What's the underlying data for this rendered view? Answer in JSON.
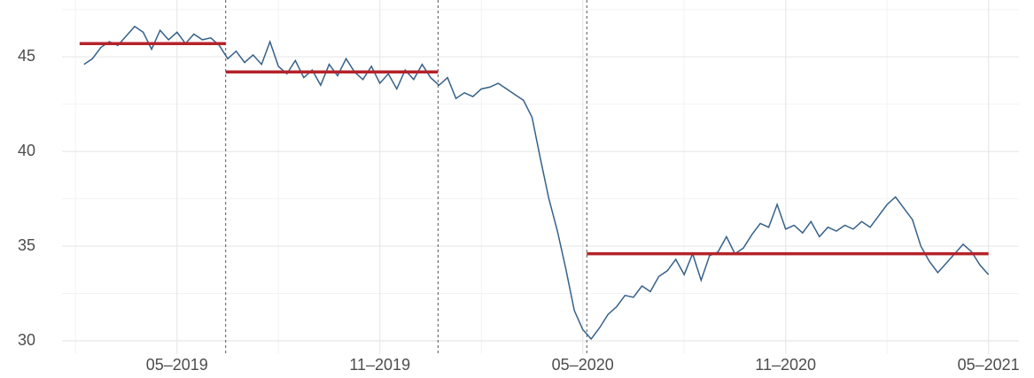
{
  "chart_data": {
    "type": "line",
    "line_color": "#36618a",
    "segment_color": "#b5232a",
    "xlim": [
      0.6,
      28.9
    ],
    "ylim": [
      29.3,
      48
    ],
    "xticks": [
      {
        "value": 4,
        "label": "05–2019"
      },
      {
        "value": 10,
        "label": "11–2019"
      },
      {
        "value": 16,
        "label": "05–2020"
      },
      {
        "value": 22,
        "label": "11–2020"
      },
      {
        "value": 28,
        "label": "05–2021"
      }
    ],
    "minor_xticks": [
      1,
      7,
      13,
      19,
      25
    ],
    "yticks": [
      30,
      35,
      40,
      45
    ],
    "minor_yticks": [
      32.5,
      37.5,
      42.5,
      47.5
    ],
    "grid": true,
    "changepoints": [
      5.44,
      11.72,
      16.12
    ],
    "segments": [
      {
        "start": 1.12,
        "end": 5.44,
        "mean": 45.7
      },
      {
        "start": 5.44,
        "end": 11.72,
        "mean": 44.2
      },
      {
        "start": 16.12,
        "end": 28,
        "mean": 34.6
      }
    ],
    "x": [
      1.25,
      1.5,
      1.75,
      2,
      2.25,
      2.5,
      2.75,
      3,
      3.25,
      3.5,
      3.75,
      4,
      4.25,
      4.5,
      4.75,
      5,
      5.25,
      5.5,
      5.75,
      6,
      6.25,
      6.5,
      6.75,
      7,
      7.25,
      7.5,
      7.75,
      8,
      8.25,
      8.5,
      8.75,
      9,
      9.25,
      9.5,
      9.75,
      10,
      10.25,
      10.5,
      10.75,
      11,
      11.25,
      11.5,
      11.75,
      12,
      12.25,
      12.5,
      12.75,
      13,
      13.25,
      13.5,
      13.75,
      14,
      14.25,
      14.5,
      14.75,
      15,
      15.25,
      15.5,
      15.75,
      16,
      16.25,
      16.5,
      16.75,
      17,
      17.25,
      17.5,
      17.75,
      18,
      18.25,
      18.5,
      18.75,
      19,
      19.25,
      19.5,
      19.75,
      20,
      20.25,
      20.5,
      20.75,
      21,
      21.25,
      21.5,
      21.75,
      22,
      22.25,
      22.5,
      22.75,
      23,
      23.25,
      23.5,
      23.75,
      24,
      24.25,
      24.5,
      24.75,
      25,
      25.25,
      25.5,
      25.75,
      26,
      26.25,
      26.5,
      26.75,
      27,
      27.25,
      27.5,
      27.75,
      28
    ],
    "values": [
      44.6,
      44.9,
      45.5,
      45.8,
      45.6,
      46.1,
      46.6,
      46.3,
      45.4,
      46.4,
      45.9,
      46.3,
      45.7,
      46.2,
      45.9,
      46.0,
      45.6,
      44.9,
      45.3,
      44.7,
      45.1,
      44.6,
      45.8,
      44.5,
      44.1,
      44.8,
      43.9,
      44.3,
      43.5,
      44.6,
      44.0,
      44.9,
      44.2,
      43.8,
      44.5,
      43.6,
      44.1,
      43.3,
      44.3,
      43.8,
      44.6,
      43.9,
      43.5,
      43.9,
      42.8,
      43.1,
      42.9,
      43.3,
      43.4,
      43.6,
      43.3,
      43.0,
      42.7,
      41.8,
      39.6,
      37.5,
      35.8,
      33.8,
      31.6,
      30.6,
      30.1,
      30.7,
      31.4,
      31.8,
      32.4,
      32.3,
      32.9,
      32.6,
      33.4,
      33.7,
      34.3,
      33.5,
      34.6,
      33.2,
      34.5,
      34.7,
      35.5,
      34.6,
      34.9,
      35.6,
      36.2,
      36.0,
      37.2,
      35.9,
      36.1,
      35.7,
      36.3,
      35.5,
      36.0,
      35.8,
      36.1,
      35.9,
      36.3,
      36.0,
      36.6,
      37.2,
      37.6,
      37.0,
      36.4,
      35.0,
      34.2,
      33.6,
      34.1,
      34.6,
      35.1,
      34.7,
      34.0,
      33.5
    ]
  }
}
